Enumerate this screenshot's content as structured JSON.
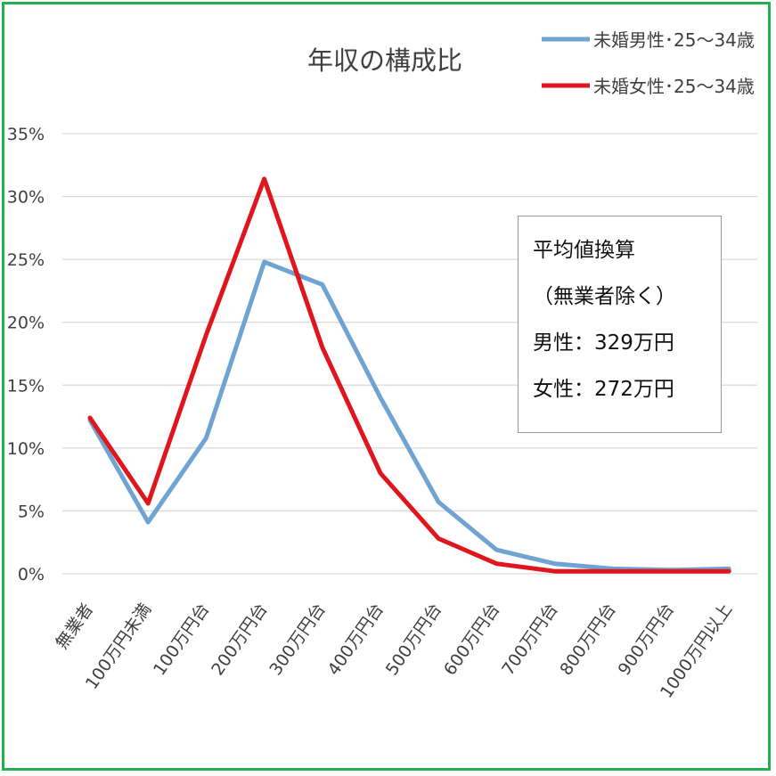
{
  "colors": {
    "frame": "#22b14c",
    "male": "#6ea3d2",
    "female": "#e0161e",
    "grid": "#d9d9d9"
  },
  "chart_data": {
    "type": "line",
    "title": "年収の構成比",
    "categories": [
      "無業者",
      "100万円未満",
      "100万円台",
      "200万円台",
      "300万円台",
      "400万円台",
      "500万円台",
      "600万円台",
      "700万円台",
      "800万円台",
      "900万円台",
      "1000万円以上"
    ],
    "series": [
      {
        "name": "未婚男性･25～34歳",
        "color": "#6ea3d2",
        "values": [
          12.2,
          4.1,
          10.8,
          24.8,
          23.0,
          14.0,
          5.7,
          1.9,
          0.8,
          0.4,
          0.3,
          0.4
        ]
      },
      {
        "name": "未婚女性･25～34歳",
        "color": "#e0161e",
        "values": [
          12.4,
          5.6,
          19.0,
          31.4,
          18.0,
          8.0,
          2.8,
          0.8,
          0.2,
          0.2,
          0.2,
          0.2
        ]
      }
    ],
    "yticks": [
      "0%",
      "5%",
      "10%",
      "15%",
      "20%",
      "25%",
      "30%",
      "35%"
    ],
    "ylim": [
      0,
      35
    ],
    "grid": true,
    "legend": "top-right"
  },
  "note": {
    "line1": "平均値換算",
    "line2": "（無業者除く）",
    "line3": "男性：329万円",
    "line4": "女性：272万円"
  }
}
